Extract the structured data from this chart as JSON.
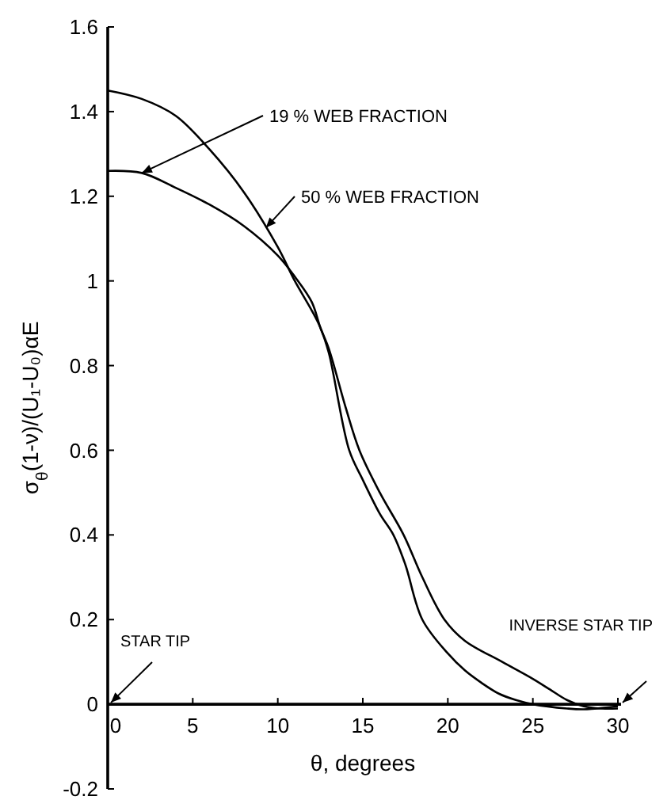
{
  "chart_data": {
    "type": "line",
    "xlabel": "θ, degrees",
    "ylabel": "σ$_{θ}$(1-ν)/(U₁-U₀)αE",
    "xlim": [
      0,
      30
    ],
    "xticks": [
      0,
      5,
      10,
      15,
      20,
      25,
      30
    ],
    "ylim": [
      -0.2,
      1.6
    ],
    "yticks": [
      -0.2,
      0,
      0.2,
      0.4,
      0.6,
      0.8,
      1.0,
      1.2,
      1.4,
      1.6
    ],
    "grid": false,
    "marker": "none",
    "line_style": "solid",
    "series": [
      {
        "name": "19 % WEB FRACTION",
        "color": "#000000",
        "x": [
          0,
          2,
          4,
          6,
          8,
          10,
          11,
          12,
          12.5,
          13,
          14,
          14.8,
          16,
          17.4,
          18.5,
          19.8,
          21,
          23.2,
          25,
          26,
          27,
          28,
          29,
          30
        ],
        "values": [
          1.26,
          1.255,
          1.22,
          1.18,
          1.13,
          1.06,
          1.01,
          0.95,
          0.89,
          0.84,
          0.7,
          0.6,
          0.5,
          0.4,
          0.3,
          0.2,
          0.15,
          0.1,
          0.06,
          0.035,
          0.01,
          -0.005,
          -0.01,
          -0.01
        ]
      },
      {
        "name": "50 % WEB FRACTION",
        "color": "#000000",
        "x": [
          0,
          2,
          4,
          6,
          8,
          10,
          11,
          12,
          12.5,
          13,
          14.2,
          15,
          16,
          16.8,
          17.5,
          18.5,
          20,
          21,
          22,
          23,
          24,
          25,
          27,
          28,
          30
        ],
        "values": [
          1.45,
          1.43,
          1.39,
          1.31,
          1.21,
          1.08,
          1.0,
          0.93,
          0.89,
          0.83,
          0.6,
          0.53,
          0.45,
          0.4,
          0.33,
          0.2,
          0.12,
          0.08,
          0.05,
          0.025,
          0.01,
          0,
          -0.01,
          -0.012,
          -0.005
        ]
      }
    ],
    "annotations": [
      "STAR TIP",
      "INVERSE STAR TIP"
    ]
  }
}
